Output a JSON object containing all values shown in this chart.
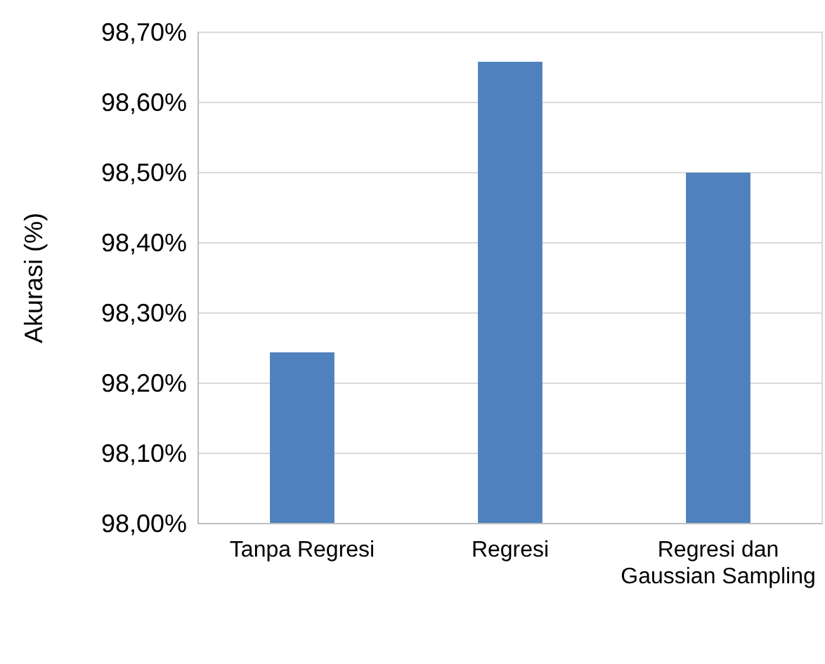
{
  "chart_data": {
    "type": "bar",
    "ylabel": "Akurasi (%)",
    "categories": [
      "Tanpa Regresi",
      "Regresi",
      "Regresi dan Gaussian Sampling"
    ],
    "values": [
      98.244,
      98.658,
      98.5
    ],
    "color": "#4f81bd",
    "ylim": [
      98,
      98.7
    ],
    "yticks": [
      {
        "value": 98,
        "label": "98,00%"
      },
      {
        "value": 98.1,
        "label": "98,10%"
      },
      {
        "value": 98.2,
        "label": "98,20%"
      },
      {
        "value": 98.3,
        "label": "98,30%"
      },
      {
        "value": 98.4,
        "label": "98,40%"
      },
      {
        "value": 98.5,
        "label": "98,50%"
      },
      {
        "value": 98.6,
        "label": "98,60%"
      },
      {
        "value": 98.7,
        "label": "98,70%"
      }
    ],
    "grid": "y"
  }
}
